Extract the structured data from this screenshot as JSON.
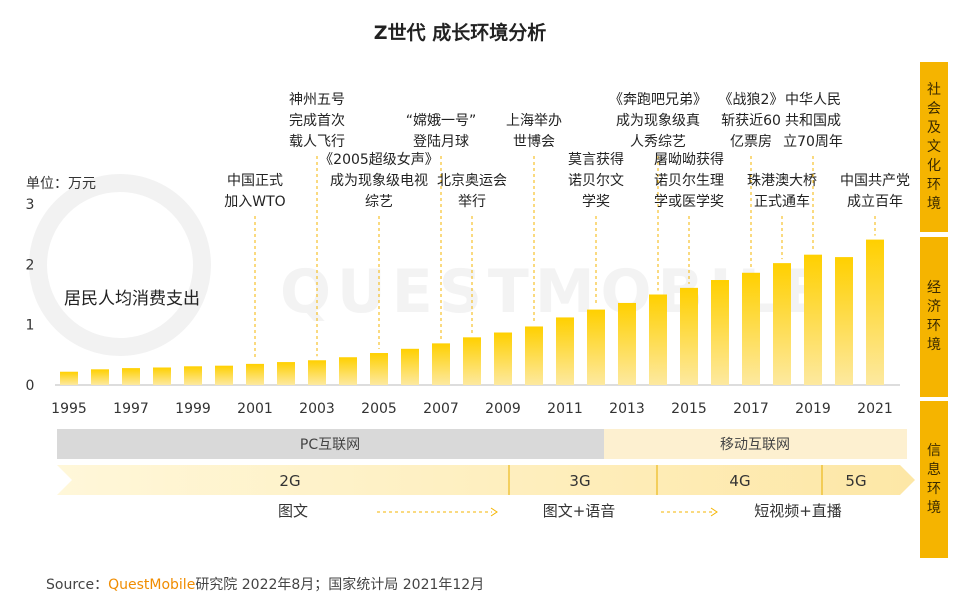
{
  "chart_data": {
    "type": "bar",
    "title": "Z世代 成长环境分析",
    "unit_label": "单位：万元",
    "series_label": "居民人均消费支出",
    "watermark": "QUESTMOBILE",
    "categories": [
      "1995",
      "1996",
      "1997",
      "1998",
      "1999",
      "2000",
      "2001",
      "2002",
      "2003",
      "2004",
      "2005",
      "2006",
      "2007",
      "2008",
      "2009",
      "2010",
      "2011",
      "2012",
      "2013",
      "2014",
      "2015",
      "2016",
      "2017",
      "2018",
      "2019",
      "2020",
      "2021"
    ],
    "x_tick_labels": [
      "1995",
      "1997",
      "1999",
      "2001",
      "2003",
      "2005",
      "2007",
      "2009",
      "2011",
      "2013",
      "2015",
      "2017",
      "2019",
      "2021"
    ],
    "values": [
      0.22,
      0.26,
      0.28,
      0.29,
      0.31,
      0.32,
      0.35,
      0.38,
      0.41,
      0.46,
      0.53,
      0.6,
      0.69,
      0.79,
      0.87,
      0.97,
      1.12,
      1.25,
      1.36,
      1.5,
      1.61,
      1.74,
      1.86,
      2.02,
      2.16,
      2.12,
      2.41
    ],
    "ylim": [
      0,
      3
    ],
    "y_ticks": [
      0,
      1,
      2,
      3
    ],
    "annotations": [
      {
        "year": "2001",
        "lines": [
          "中国正式",
          "加入WTO"
        ]
      },
      {
        "year": "2003",
        "lines": [
          "神州五号",
          "完成首次",
          "载人飞行"
        ]
      },
      {
        "year": "2005",
        "lines": [
          "《2005超级女声》",
          "成为现象级电视",
          "综艺"
        ]
      },
      {
        "year": "2007",
        "lines": [
          "“嫦娥一号”",
          "登陆月球"
        ]
      },
      {
        "year": "2008",
        "lines": [
          "北京奥运会",
          "举行"
        ]
      },
      {
        "year": "2010",
        "lines": [
          "上海举办",
          "世博会"
        ]
      },
      {
        "year": "2012",
        "lines": [
          "莫言获得",
          "诺贝尔文",
          "学奖"
        ]
      },
      {
        "year": "2014",
        "lines": [
          "《奔跑吧兄弟》",
          "成为现象级真",
          "人秀综艺"
        ]
      },
      {
        "year": "2015",
        "lines": [
          "屠呦呦获得",
          "诺贝尔生理",
          "学或医学奖"
        ]
      },
      {
        "year": "2017",
        "lines": [
          "《战狼2》",
          "斩获近60",
          "亿票房"
        ]
      },
      {
        "year": "2018",
        "lines": [
          "珠港澳大桥",
          "正式通车"
        ]
      },
      {
        "year": "2019",
        "lines": [
          "中华人民",
          "共和国成",
          "立70周年"
        ]
      },
      {
        "year": "2021",
        "lines": [
          "中国共产党",
          "成立百年"
        ]
      }
    ]
  },
  "internet_era": {
    "pc": "PC互联网",
    "mobile": "移动互联网"
  },
  "network": [
    "2G",
    "3G",
    "4G",
    "5G"
  ],
  "content_forms": [
    "图文",
    "图文+语音",
    "短视频+直播"
  ],
  "side_labels": [
    "社会及文化环境",
    "经济环境",
    "信息环境"
  ],
  "source": {
    "prefix": "Source：",
    "brand": "QuestMobile",
    "rest": "研究院 2022年8月；国家统计局 2021年12月"
  },
  "colors": {
    "accent": "#f5b400",
    "bar_top": "#ffd21a",
    "bar_bottom": "#fbe99a",
    "grey_band": "#d9d9d9",
    "cream_band": "#fdf0d0"
  }
}
